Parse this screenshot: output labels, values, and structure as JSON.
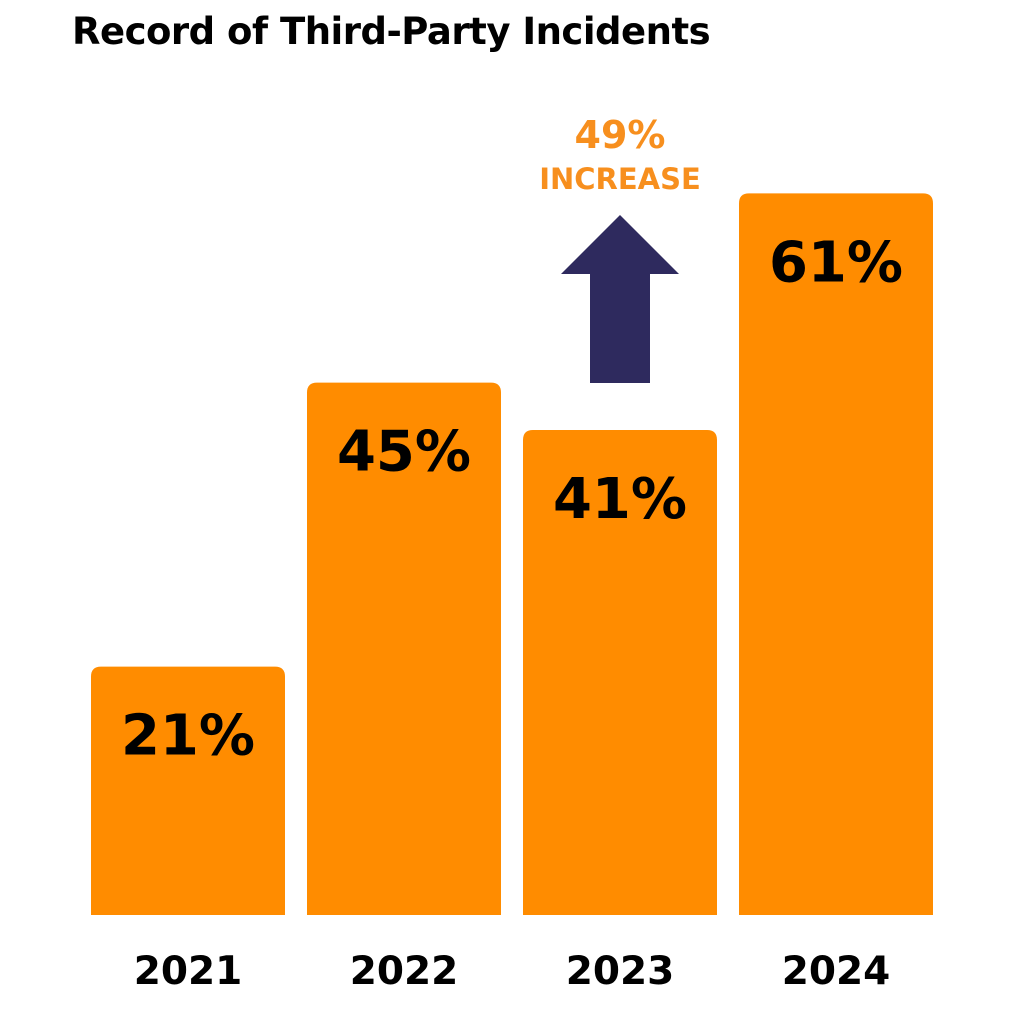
{
  "chart_data": {
    "type": "bar",
    "title": "Record of Third-Party Incidents",
    "categories": [
      "2021",
      "2022",
      "2023",
      "2024"
    ],
    "values": [
      21,
      45,
      41,
      61
    ],
    "value_labels": [
      "21%",
      "45%",
      "41%",
      "61%"
    ],
    "ylim": [
      0,
      65
    ],
    "grid": false,
    "legend": "none",
    "annotation": {
      "value": "49%",
      "text": "INCREASE",
      "icon": "up-arrow-icon"
    }
  },
  "colors": {
    "bar": "#FF8C00",
    "value_text": "#000000",
    "tick_text": "#000000",
    "annotation_text": "#F78F1E",
    "arrow": "#2E2A5E"
  }
}
